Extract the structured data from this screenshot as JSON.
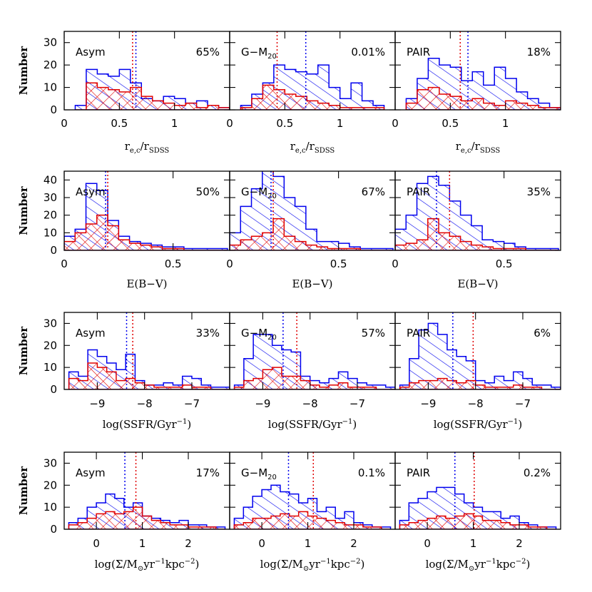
{
  "chart_data": [
    {
      "type": "histogram",
      "row": 0,
      "xlabel_main": "r",
      "xlabel_sub": "e,c",
      "xlabel_mid": "/r",
      "xlabel_sub2": "SDSS",
      "ylabel": "Number",
      "xlim": [
        0.0,
        1.5
      ],
      "ylim": [
        0,
        35
      ],
      "xticks": [
        0,
        0.5,
        1
      ],
      "yticks": [
        0,
        10,
        20,
        30
      ],
      "panels": [
        {
          "label": "Asym",
          "pct": "65%",
          "bins": [
            0.1,
            0.2,
            0.3,
            0.4,
            0.5,
            0.6,
            0.7,
            0.8,
            0.9,
            1.0,
            1.1,
            1.2,
            1.3,
            1.4,
            1.5
          ],
          "blue": [
            2,
            18,
            16,
            15,
            18,
            12,
            5,
            4,
            6,
            5,
            3,
            4,
            2,
            1
          ],
          "red": [
            0,
            12,
            10,
            9,
            8,
            10,
            6,
            4,
            3,
            2,
            3,
            1,
            2,
            1
          ],
          "blue_median": 0.65,
          "red_median": 0.62
        },
        {
          "label_main": "G−M",
          "label_sub": "20",
          "pct": "0.01%",
          "bins": [
            0.1,
            0.2,
            0.3,
            0.4,
            0.5,
            0.6,
            0.7,
            0.8,
            0.9,
            1.0,
            1.1,
            1.2,
            1.3,
            1.4
          ],
          "blue": [
            2,
            7,
            12,
            20,
            18,
            17,
            16,
            20,
            10,
            5,
            12,
            4,
            2
          ],
          "red": [
            1,
            5,
            11,
            9,
            7,
            6,
            4,
            3,
            2,
            1,
            1,
            1,
            1
          ],
          "blue_median": 0.69,
          "red_median": 0.43
        },
        {
          "label": "PAIR",
          "pct": "18%",
          "bins": [
            0.1,
            0.2,
            0.3,
            0.4,
            0.5,
            0.6,
            0.7,
            0.8,
            0.9,
            1.0,
            1.1,
            1.2,
            1.3,
            1.4,
            1.5
          ],
          "blue": [
            5,
            14,
            23,
            20,
            19,
            13,
            17,
            11,
            19,
            14,
            8,
            5,
            3,
            1
          ],
          "red": [
            3,
            9,
            10,
            7,
            6,
            4,
            5,
            3,
            2,
            4,
            3,
            2,
            1,
            1
          ],
          "blue_median": 0.66,
          "red_median": 0.59
        }
      ]
    },
    {
      "type": "histogram",
      "row": 1,
      "xlabel": "E(B−V)",
      "ylabel": "Number",
      "xlim": [
        0.0,
        0.76
      ],
      "ylim": [
        0,
        45
      ],
      "xticks": [
        0,
        0.5
      ],
      "yticks": [
        0,
        10,
        20,
        30,
        40
      ],
      "panels": [
        {
          "label": "Asym",
          "pct": "50%",
          "bins": [
            0.0,
            0.05,
            0.1,
            0.15,
            0.2,
            0.25,
            0.3,
            0.35,
            0.4,
            0.45,
            0.5,
            0.55,
            0.6,
            0.65,
            0.7,
            0.75
          ],
          "blue": [
            8,
            12,
            38,
            34,
            17,
            8,
            5,
            4,
            3,
            2,
            2,
            1,
            1,
            1,
            1
          ],
          "red": [
            5,
            10,
            15,
            20,
            14,
            6,
            4,
            3,
            2,
            1,
            1,
            0,
            0,
            0,
            0
          ],
          "blue_median": 0.19,
          "red_median": 0.2
        },
        {
          "label_main": "G−M",
          "label_sub": "20",
          "pct": "67%",
          "bins": [
            0.0,
            0.05,
            0.1,
            0.15,
            0.2,
            0.25,
            0.3,
            0.35,
            0.4,
            0.45,
            0.5,
            0.55,
            0.6,
            0.65,
            0.7,
            0.75
          ],
          "blue": [
            10,
            25,
            35,
            48,
            42,
            30,
            25,
            12,
            5,
            5,
            4,
            2,
            1,
            1,
            1
          ],
          "red": [
            3,
            6,
            8,
            10,
            18,
            8,
            5,
            3,
            2,
            1,
            1,
            1,
            0,
            0,
            0
          ],
          "blue_median": 0.19,
          "red_median": 0.2
        },
        {
          "label": "PAIR",
          "pct": "35%",
          "bins": [
            0.0,
            0.05,
            0.1,
            0.15,
            0.2,
            0.25,
            0.3,
            0.35,
            0.4,
            0.45,
            0.5,
            0.55,
            0.6,
            0.65,
            0.7,
            0.75
          ],
          "blue": [
            12,
            20,
            38,
            42,
            37,
            28,
            20,
            14,
            6,
            5,
            4,
            2,
            1,
            1,
            1
          ],
          "red": [
            3,
            4,
            6,
            18,
            10,
            8,
            5,
            3,
            2,
            1,
            1,
            1,
            0,
            0,
            0
          ],
          "blue_median": 0.19,
          "red_median": 0.25
        }
      ]
    },
    {
      "type": "histogram",
      "row": 2,
      "xlabel_main": "log(SSFR/Gyr",
      "xlabel_sup": "−1",
      "xlabel_end": ")",
      "ylabel": "Number",
      "xlim": [
        -9.7,
        -6.2
      ],
      "ylim": [
        0,
        35
      ],
      "xticks": [
        -9,
        -8,
        -7
      ],
      "yticks": [
        0,
        10,
        20,
        30
      ],
      "panels": [
        {
          "label": "Asym",
          "pct": "33%",
          "bins": [
            -9.6,
            -9.4,
            -9.2,
            -9.0,
            -8.8,
            -8.6,
            -8.4,
            -8.2,
            -8.0,
            -7.8,
            -7.6,
            -7.4,
            -7.2,
            -7.0,
            -6.8,
            -6.6,
            -6.4,
            -6.2
          ],
          "blue": [
            8,
            6,
            18,
            15,
            12,
            9,
            16,
            4,
            2,
            2,
            3,
            2,
            6,
            5,
            2,
            1,
            1
          ],
          "red": [
            5,
            4,
            12,
            10,
            8,
            4,
            5,
            3,
            2,
            1,
            1,
            1,
            2,
            1,
            1,
            0,
            0
          ],
          "blue_median": -8.38,
          "red_median": -8.25
        },
        {
          "label_main": "G−M",
          "label_sub": "20",
          "pct": "57%",
          "bins": [
            -9.6,
            -9.4,
            -9.2,
            -9.0,
            -8.8,
            -8.6,
            -8.4,
            -8.2,
            -8.0,
            -7.8,
            -7.6,
            -7.4,
            -7.2,
            -7.0,
            -6.8,
            -6.6,
            -6.4,
            -6.2
          ],
          "blue": [
            2,
            14,
            25,
            25,
            20,
            18,
            17,
            6,
            4,
            3,
            5,
            8,
            5,
            3,
            2,
            2,
            1
          ],
          "red": [
            1,
            4,
            5,
            9,
            10,
            6,
            6,
            4,
            2,
            1,
            2,
            3,
            1,
            1,
            1,
            0,
            0
          ],
          "blue_median": -8.57,
          "red_median": -8.28
        },
        {
          "label": "PAIR",
          "pct": "6%",
          "bins": [
            -9.6,
            -9.4,
            -9.2,
            -9.0,
            -8.8,
            -8.6,
            -8.4,
            -8.2,
            -8.0,
            -7.8,
            -7.6,
            -7.4,
            -7.2,
            -7.0,
            -6.8,
            -6.6,
            -6.4,
            -6.2
          ],
          "blue": [
            2,
            14,
            27,
            30,
            25,
            18,
            15,
            13,
            4,
            3,
            6,
            4,
            8,
            5,
            2,
            2,
            1
          ],
          "red": [
            1,
            3,
            4,
            4,
            5,
            4,
            3,
            4,
            2,
            1,
            1,
            1,
            2,
            1,
            1,
            0,
            0
          ],
          "blue_median": -8.48,
          "red_median": -8.05
        }
      ]
    },
    {
      "type": "histogram",
      "row": 3,
      "xlabel_main": "log(Σ/M",
      "xlabel_sun": "⊙",
      "xlabel_mid": "yr",
      "xlabel_sup": "−1",
      "xlabel_kpc": "kpc",
      "xlabel_sup2": "−2",
      "xlabel_end": ")",
      "ylabel": "Number",
      "xlim": [
        -0.7,
        2.9
      ],
      "ylim": [
        0,
        35
      ],
      "xticks": [
        0,
        1,
        2
      ],
      "yticks": [
        0,
        10,
        20,
        30
      ],
      "panels": [
        {
          "label": "Asym",
          "pct": "17%",
          "bins": [
            -0.6,
            -0.4,
            -0.2,
            0.0,
            0.2,
            0.4,
            0.6,
            0.8,
            1.0,
            1.2,
            1.4,
            1.6,
            1.8,
            2.0,
            2.2,
            2.4,
            2.6,
            2.8
          ],
          "blue": [
            3,
            5,
            10,
            12,
            16,
            14,
            10,
            12,
            6,
            5,
            4,
            3,
            4,
            2,
            2,
            1,
            1
          ],
          "red": [
            2,
            3,
            5,
            7,
            8,
            7,
            8,
            10,
            6,
            4,
            3,
            2,
            2,
            1,
            1,
            1,
            0
          ],
          "blue_median": 0.62,
          "red_median": 0.86
        },
        {
          "label_main": "G−M",
          "label_sub": "20",
          "pct": "0.1%",
          "bins": [
            -0.6,
            -0.4,
            -0.2,
            0.0,
            0.2,
            0.4,
            0.6,
            0.8,
            1.0,
            1.2,
            1.4,
            1.6,
            1.8,
            2.0,
            2.2,
            2.4,
            2.6,
            2.8
          ],
          "blue": [
            5,
            10,
            15,
            18,
            20,
            17,
            16,
            12,
            14,
            8,
            10,
            5,
            8,
            3,
            2,
            1,
            1
          ],
          "red": [
            2,
            3,
            5,
            5,
            6,
            7,
            6,
            8,
            6,
            5,
            4,
            3,
            2,
            2,
            1,
            1,
            0
          ],
          "blue_median": 0.58,
          "red_median": 1.12
        },
        {
          "label": "PAIR",
          "pct": "0.2%",
          "bins": [
            -0.6,
            -0.4,
            -0.2,
            0.0,
            0.2,
            0.4,
            0.6,
            0.8,
            1.0,
            1.2,
            1.4,
            1.6,
            1.8,
            2.0,
            2.2,
            2.4,
            2.6,
            2.8
          ],
          "blue": [
            4,
            12,
            14,
            17,
            19,
            19,
            16,
            12,
            10,
            8,
            8,
            5,
            6,
            3,
            2,
            1,
            1
          ],
          "red": [
            2,
            3,
            4,
            5,
            6,
            5,
            6,
            7,
            6,
            4,
            4,
            3,
            2,
            2,
            1,
            1,
            0
          ],
          "blue_median": 0.6,
          "red_median": 1.02
        }
      ]
    }
  ],
  "colors": {
    "blue": "#0000ee",
    "red": "#e00000",
    "axis": "#000000"
  }
}
